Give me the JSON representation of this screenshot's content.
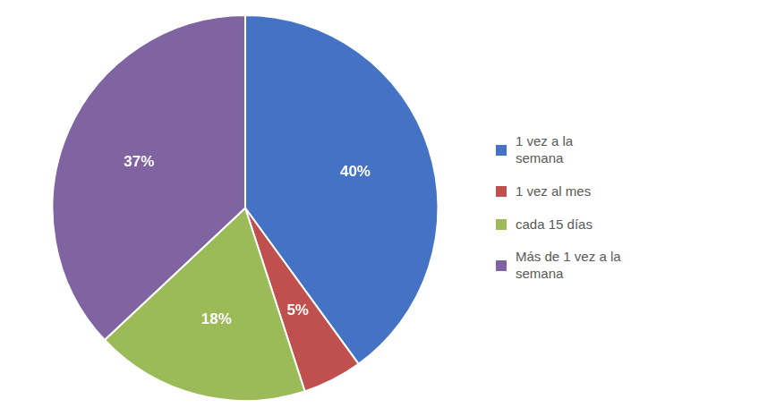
{
  "chart_data": {
    "type": "pie",
    "categories": [
      "1 vez a la\nsemana",
      "1 vez al mes",
      "cada 15 días",
      "Más de 1 vez a la\nsemana"
    ],
    "values": [
      40,
      5,
      18,
      37
    ],
    "value_labels": [
      "40%",
      "5%",
      "18%",
      "37%"
    ],
    "colors": [
      "#4472C4",
      "#C0504D",
      "#9BBB59",
      "#8064A2"
    ],
    "data_labels": true,
    "legend": "right"
  }
}
